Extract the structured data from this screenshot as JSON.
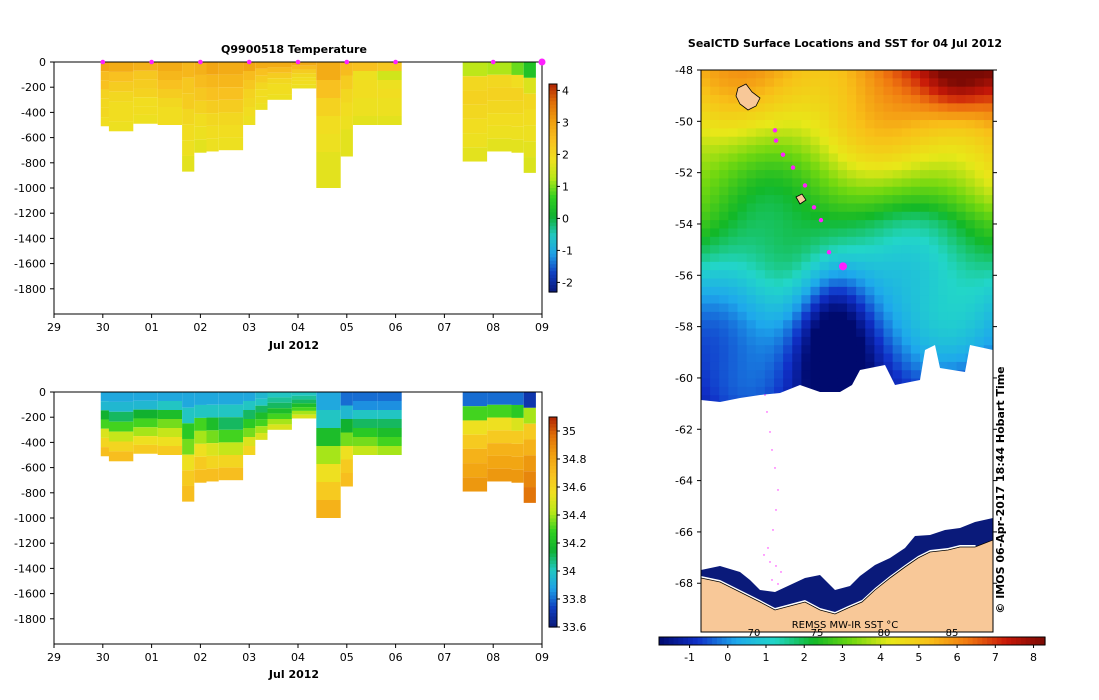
{
  "colors": {
    "temp_ramp": [
      "#0a1a7a",
      "#1040c0",
      "#1fa0e6",
      "#22c8c0",
      "#10b030",
      "#30d020",
      "#b8e818",
      "#f0e020",
      "#f8c020",
      "#f0a010",
      "#e07008",
      "#b02404"
    ],
    "sal_ramp": [
      "#0a1a7a",
      "#1040c0",
      "#1fa0e6",
      "#22c8c0",
      "#10b030",
      "#30d020",
      "#b8e818",
      "#f0e020",
      "#f8c020",
      "#f0a010",
      "#e07008",
      "#b02404"
    ],
    "sst_ramp": [
      "#000a6e",
      "#1030c8",
      "#1ea8ec",
      "#22d6c8",
      "#12b828",
      "#70d810",
      "#e8e818",
      "#f8c018",
      "#f07810",
      "#c81808",
      "#7a0a04"
    ],
    "land": "#f8c898",
    "ice": "#ffffff",
    "marker": "#ff20ff"
  },
  "chart_data": [
    {
      "type": "heatmap",
      "title": "Q9900518  Temperature",
      "xlabel": "Jul 2012",
      "x_ticks": [
        "29",
        "30",
        "01",
        "02",
        "03",
        "04",
        "05",
        "06",
        "07",
        "08",
        "09"
      ],
      "x_range_days": [
        "2012-06-29",
        "2012-07-09"
      ],
      "y_ticks": [
        0,
        -200,
        -400,
        -600,
        -800,
        -1000,
        -1200,
        -1400,
        -1600,
        -1800
      ],
      "ylim": [
        -2000,
        0
      ],
      "colorbar_ticks": [
        4,
        3,
        2,
        1,
        0,
        -1,
        -2
      ],
      "colorbar_range": [
        -2.3,
        4.2
      ],
      "profiles": [
        {
          "date": "2012-06-29T23:00",
          "width": 0.17,
          "depth": -510,
          "values": [
            2.9,
            2.5,
            2.4,
            2.1,
            2.0,
            2.0,
            1.9
          ]
        },
        {
          "date": "2012-06-30T03:00",
          "width": 0.5,
          "depth": -550,
          "values": [
            2.8,
            2.4,
            2.2,
            2.0,
            1.9,
            1.9,
            1.8
          ]
        },
        {
          "date": "2012-06-30T15:00",
          "width": 0.5,
          "depth": -490,
          "values": [
            2.7,
            2.3,
            2.2,
            2.1,
            1.9,
            1.9,
            1.8
          ]
        },
        {
          "date": "2012-07-01T03:00",
          "width": 0.5,
          "depth": -500,
          "values": [
            2.8,
            2.6,
            2.4,
            2.2,
            2.0,
            1.9,
            1.9
          ]
        },
        {
          "date": "2012-07-01T15:00",
          "width": 0.25,
          "depth": -870,
          "values": [
            2.6,
            2.3,
            2.2,
            2.0,
            1.9,
            1.8,
            1.7
          ]
        },
        {
          "date": "2012-07-01T21:00",
          "width": 0.25,
          "depth": -720,
          "values": [
            2.7,
            2.5,
            2.3,
            2.1,
            1.9,
            1.8,
            1.7
          ]
        },
        {
          "date": "2012-07-02T03:00",
          "width": 0.25,
          "depth": -710,
          "values": [
            2.9,
            2.6,
            2.4,
            2.2,
            2.0,
            1.9,
            1.8
          ]
        },
        {
          "date": "2012-07-02T09:00",
          "width": 0.5,
          "depth": -700,
          "values": [
            2.8,
            2.6,
            2.4,
            2.2,
            2.0,
            1.9,
            1.8
          ]
        },
        {
          "date": "2012-07-02T21:00",
          "width": 0.25,
          "depth": -500,
          "values": [
            2.9,
            2.5,
            2.3,
            2.1,
            2.0,
            1.9,
            1.8
          ]
        },
        {
          "date": "2012-07-03T03:00",
          "width": 0.25,
          "depth": -380,
          "values": [
            2.8,
            2.4,
            2.2,
            2.0,
            1.9,
            1.9,
            1.8
          ]
        },
        {
          "date": "2012-07-03T09:00",
          "width": 0.5,
          "depth": -300,
          "values": [
            2.8,
            2.5,
            2.2,
            2.0,
            1.9,
            1.9,
            1.8
          ]
        },
        {
          "date": "2012-07-03T21:00",
          "width": 0.5,
          "depth": -210,
          "values": [
            2.8,
            2.5,
            2.2,
            2.0,
            1.9,
            1.9,
            1.8
          ]
        },
        {
          "date": "2012-07-04T09:00",
          "width": 0.5,
          "depth": -1000,
          "values": [
            2.8,
            2.4,
            2.1,
            1.9,
            1.8,
            1.7,
            1.7
          ]
        },
        {
          "date": "2012-07-04T21:00",
          "width": 0.25,
          "depth": -750,
          "values": [
            2.5,
            2.2,
            2.0,
            1.9,
            1.8,
            1.7,
            1.7
          ]
        },
        {
          "date": "2012-07-05T03:00",
          "width": 0.5,
          "depth": -500,
          "values": [
            2.4,
            1.8,
            1.9,
            1.9,
            1.8,
            1.8,
            1.7
          ]
        },
        {
          "date": "2012-07-05T15:00",
          "width": 0.5,
          "depth": -500,
          "values": [
            2.3,
            1.5,
            1.8,
            1.9,
            1.8,
            1.8,
            1.7
          ]
        },
        {
          "date": "2012-07-07T09:00",
          "width": 0.5,
          "depth": -790,
          "values": [
            1.3,
            2.0,
            2.1,
            2.0,
            1.9,
            1.8,
            1.7
          ]
        },
        {
          "date": "2012-07-07T21:00",
          "width": 0.5,
          "depth": -710,
          "values": [
            1.2,
            2.0,
            2.1,
            2.0,
            1.9,
            1.8,
            1.7
          ]
        },
        {
          "date": "2012-07-08T09:00",
          "width": 0.25,
          "depth": -720,
          "values": [
            0.9,
            1.9,
            2.1,
            2.0,
            1.9,
            1.8,
            1.7
          ]
        },
        {
          "date": "2012-07-08T15:00",
          "width": 0.25,
          "depth": -880,
          "values": [
            0.4,
            1.6,
            2.0,
            1.9,
            1.8,
            1.7,
            1.6
          ]
        }
      ],
      "surface_markers": [
        "2012-06-30T00:00",
        "2012-07-01T00:00",
        "2012-07-02T00:00",
        "2012-07-03T00:00",
        "2012-07-04T00:00",
        "2012-07-05T00:00",
        "2012-07-06T00:00",
        "2012-07-08T00:00",
        "2012-07-09T00:00"
      ]
    },
    {
      "type": "heatmap",
      "title": "",
      "xlabel": "Jul 2012",
      "x_ticks": [
        "29",
        "30",
        "01",
        "02",
        "03",
        "04",
        "05",
        "06",
        "07",
        "08",
        "09"
      ],
      "x_range_days": [
        "2012-06-29",
        "2012-07-09"
      ],
      "y_ticks": [
        0,
        -200,
        -400,
        -600,
        -800,
        -1000,
        -1200,
        -1400,
        -1600,
        -1800
      ],
      "ylim": [
        -2000,
        0
      ],
      "colorbar_ticks": [
        35,
        34.8,
        34.6,
        34.4,
        34.2,
        34,
        33.8,
        33.6
      ],
      "colorbar_range": [
        33.6,
        35.1
      ],
      "profiles": [
        {
          "date": "2012-06-29T23:00",
          "width": 0.17,
          "depth": -510,
          "values": [
            33.9,
            33.95,
            34.15,
            34.3,
            34.5,
            34.6,
            34.7
          ]
        },
        {
          "date": "2012-06-30T03:00",
          "width": 0.5,
          "depth": -550,
          "values": [
            33.9,
            33.95,
            34.1,
            34.3,
            34.45,
            34.6,
            34.7
          ]
        },
        {
          "date": "2012-06-30T15:00",
          "width": 0.5,
          "depth": -490,
          "values": [
            33.9,
            33.95,
            34.15,
            34.3,
            34.4,
            34.55,
            34.65
          ]
        },
        {
          "date": "2012-07-01T03:00",
          "width": 0.5,
          "depth": -500,
          "values": [
            33.9,
            34.0,
            34.2,
            34.35,
            34.45,
            34.55,
            34.65
          ]
        },
        {
          "date": "2012-07-01T15:00",
          "width": 0.25,
          "depth": -870,
          "values": [
            33.9,
            34.0,
            34.25,
            34.35,
            34.55,
            34.65,
            34.7
          ]
        },
        {
          "date": "2012-07-01T21:00",
          "width": 0.25,
          "depth": -720,
          "values": [
            33.9,
            34.0,
            34.3,
            34.4,
            34.55,
            34.65,
            34.7
          ]
        },
        {
          "date": "2012-07-02T03:00",
          "width": 0.25,
          "depth": -710,
          "values": [
            33.9,
            34.0,
            34.2,
            34.35,
            34.5,
            34.6,
            34.7
          ]
        },
        {
          "date": "2012-07-02T09:00",
          "width": 0.5,
          "depth": -700,
          "values": [
            33.9,
            34.0,
            34.1,
            34.3,
            34.45,
            34.6,
            34.7
          ]
        },
        {
          "date": "2012-07-02T21:00",
          "width": 0.25,
          "depth": -500,
          "values": [
            33.9,
            34.0,
            34.1,
            34.25,
            34.35,
            34.5,
            34.6
          ]
        },
        {
          "date": "2012-07-03T03:00",
          "width": 0.25,
          "depth": -380,
          "values": [
            33.95,
            34.0,
            34.1,
            34.2,
            34.3,
            34.4,
            34.5
          ]
        },
        {
          "date": "2012-07-03T09:00",
          "width": 0.5,
          "depth": -300,
          "values": [
            34.0,
            34.05,
            34.1,
            34.2,
            34.3,
            34.4,
            34.5
          ]
        },
        {
          "date": "2012-07-03T21:00",
          "width": 0.5,
          "depth": -210,
          "values": [
            34.0,
            34.05,
            34.1,
            34.2,
            34.3,
            34.4,
            34.5
          ]
        },
        {
          "date": "2012-07-04T09:00",
          "width": 0.5,
          "depth": -1000,
          "values": [
            33.9,
            34.0,
            34.2,
            34.4,
            34.55,
            34.65,
            34.75
          ]
        },
        {
          "date": "2012-07-04T21:00",
          "width": 0.25,
          "depth": -750,
          "values": [
            33.8,
            33.95,
            34.15,
            34.35,
            34.55,
            34.65,
            34.7
          ]
        },
        {
          "date": "2012-07-05T03:00",
          "width": 0.5,
          "depth": -500,
          "values": [
            33.8,
            33.85,
            34.0,
            34.1,
            34.25,
            34.35,
            34.45
          ]
        },
        {
          "date": "2012-07-05T15:00",
          "width": 0.5,
          "depth": -500,
          "values": [
            33.8,
            33.85,
            34.0,
            34.1,
            34.2,
            34.3,
            34.4
          ]
        },
        {
          "date": "2012-07-07T09:00",
          "width": 0.5,
          "depth": -790,
          "values": [
            33.8,
            34.3,
            34.55,
            34.65,
            34.75,
            34.8,
            34.85
          ]
        },
        {
          "date": "2012-07-07T21:00",
          "width": 0.5,
          "depth": -710,
          "values": [
            33.8,
            34.3,
            34.55,
            34.65,
            34.75,
            34.8,
            34.85
          ]
        },
        {
          "date": "2012-07-08T09:00",
          "width": 0.25,
          "depth": -720,
          "values": [
            33.8,
            34.25,
            34.5,
            34.65,
            34.75,
            34.8,
            34.85
          ]
        },
        {
          "date": "2012-07-08T15:00",
          "width": 0.25,
          "depth": -880,
          "values": [
            33.7,
            34.4,
            34.65,
            34.75,
            34.85,
            34.9,
            34.95
          ]
        }
      ]
    },
    {
      "type": "heatmap",
      "title": "SealCTD Surface Locations and SST for 04 Jul 2012",
      "y_ticks": [
        -48,
        -50,
        -52,
        -54,
        -56,
        -58,
        -60,
        -62,
        -64,
        -66,
        -68
      ],
      "ylim": [
        -69.9,
        -48
      ],
      "colorbar_label": "REMSS MW-IR SST °C",
      "colorbar_ticks": [
        -1,
        0,
        1,
        2,
        3,
        4,
        5,
        6,
        7,
        8
      ],
      "colorbar_range": [
        -1.8,
        8.3
      ],
      "colorbar_overlay_labels": [
        "70",
        "75",
        "80",
        "85"
      ],
      "credit": "© IMOS 06-Apr-2017 18:44 Hobart Time",
      "track_latitudes": [
        -50.35,
        -50.75,
        -51.3,
        -51.8,
        -52.5,
        -53.35,
        -53.85,
        -55.1,
        -55.65
      ]
    }
  ]
}
